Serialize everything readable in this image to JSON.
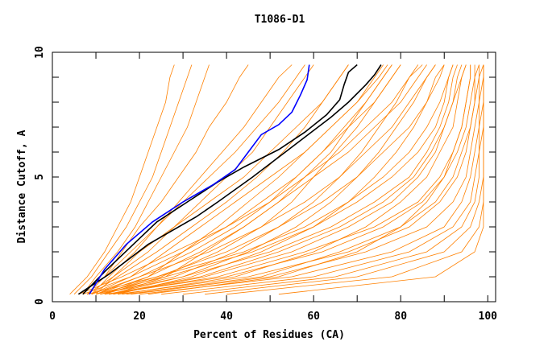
{
  "chart_data": {
    "type": "line",
    "title": "T1086-D1",
    "xlabel": "Percent of Residues (CA)",
    "ylabel": "Distance Cutoff, A",
    "xlim": [
      0,
      101.8
    ],
    "ylim": [
      0,
      10
    ],
    "x_ticks": [
      0,
      20,
      40,
      60,
      80,
      100
    ],
    "y_ticks": [
      0,
      5,
      10
    ],
    "grid": false,
    "colors": {
      "models": "#ff8000",
      "highlight": "#0000ff",
      "reference": "#000000"
    },
    "cutoffs": [
      0.3,
      1,
      2,
      3,
      4,
      5,
      6,
      7,
      8,
      9,
      9.5
    ],
    "orange_series_x": [
      [
        4,
        8,
        12,
        15,
        18,
        20,
        22,
        24,
        26,
        27,
        28
      ],
      [
        5,
        9,
        13,
        17,
        20,
        23,
        25,
        27,
        29,
        31,
        32
      ],
      [
        7,
        10,
        15,
        19,
        22,
        25,
        28,
        31,
        33,
        35,
        36
      ],
      [
        8,
        12,
        16,
        20,
        25,
        29,
        33,
        36,
        40,
        43,
        45
      ],
      [
        9,
        13,
        19,
        24,
        29,
        34,
        39,
        44,
        48,
        52,
        55
      ],
      [
        10,
        14,
        22,
        28,
        34,
        40,
        46,
        50,
        54,
        58,
        60
      ],
      [
        9,
        15,
        24,
        32,
        40,
        47,
        53,
        58,
        62,
        66,
        68
      ],
      [
        10,
        20,
        32,
        42,
        50,
        56,
        62,
        67,
        72,
        76,
        78
      ],
      [
        12,
        25,
        38,
        48,
        55,
        60,
        65,
        70,
        74,
        78,
        80
      ],
      [
        11,
        28,
        42,
        52,
        60,
        66,
        71,
        75,
        79,
        82,
        84
      ],
      [
        13,
        30,
        45,
        56,
        64,
        70,
        75,
        79,
        83,
        86,
        88
      ],
      [
        12,
        22,
        30,
        38,
        45,
        52,
        58,
        64,
        70,
        75,
        77
      ],
      [
        14,
        26,
        35,
        44,
        52,
        58,
        64,
        68,
        72,
        76,
        78
      ],
      [
        15,
        32,
        48,
        60,
        68,
        74,
        79,
        83,
        86,
        89,
        90
      ],
      [
        12,
        40,
        62,
        76,
        85,
        90,
        93,
        95,
        96,
        97,
        97
      ],
      [
        15,
        45,
        68,
        82,
        89,
        93,
        95,
        96,
        97,
        98,
        98
      ],
      [
        18,
        50,
        72,
        86,
        92,
        95,
        96,
        97,
        98,
        98,
        99
      ],
      [
        20,
        55,
        78,
        90,
        94,
        96,
        97,
        98,
        98,
        99,
        99
      ],
      [
        25,
        60,
        82,
        92,
        96,
        97,
        98,
        98,
        99,
        99,
        99
      ],
      [
        30,
        65,
        86,
        94,
        97,
        98,
        98,
        99,
        99,
        99,
        99
      ],
      [
        35,
        70,
        90,
        96,
        98,
        99,
        99,
        99,
        99,
        99,
        99
      ],
      [
        40,
        78,
        94,
        98,
        99,
        99,
        99,
        99,
        99,
        99,
        99
      ],
      [
        52,
        88,
        97,
        99,
        99,
        99,
        99,
        99,
        99,
        99,
        99
      ],
      [
        22,
        52,
        70,
        80,
        86,
        90,
        92,
        94,
        95,
        96,
        96
      ],
      [
        16,
        42,
        60,
        72,
        80,
        86,
        89,
        92,
        93,
        94,
        95
      ],
      [
        14,
        35,
        55,
        68,
        78,
        84,
        88,
        90,
        92,
        93,
        94
      ],
      [
        11,
        30,
        50,
        64,
        74,
        82,
        86,
        89,
        91,
        92,
        93
      ],
      [
        10,
        26,
        46,
        60,
        70,
        78,
        84,
        88,
        90,
        91,
        92
      ],
      [
        13,
        38,
        58,
        74,
        84,
        89,
        92,
        94,
        95,
        96,
        96
      ],
      [
        17,
        48,
        66,
        80,
        88,
        92,
        94,
        96,
        97,
        97,
        98
      ],
      [
        8,
        24,
        40,
        52,
        62,
        70,
        76,
        82,
        86,
        88,
        90
      ],
      [
        9,
        20,
        36,
        48,
        58,
        66,
        72,
        78,
        82,
        86,
        88
      ],
      [
        6,
        16,
        28,
        40,
        50,
        58,
        66,
        72,
        78,
        82,
        85
      ],
      [
        7,
        18,
        26,
        34,
        42,
        50,
        58,
        64,
        70,
        74,
        76
      ],
      [
        8,
        14,
        20,
        28,
        36,
        44,
        50,
        56,
        62,
        66,
        68
      ],
      [
        10,
        22,
        34,
        44,
        52,
        60,
        68,
        74,
        80,
        84,
        86
      ],
      [
        9,
        18,
        30,
        40,
        48,
        56,
        62,
        68,
        74,
        78,
        80
      ],
      [
        11,
        24,
        44,
        58,
        68,
        76,
        82,
        86,
        89,
        91,
        92
      ],
      [
        13,
        34,
        52,
        66,
        76,
        83,
        87,
        90,
        92,
        94,
        95
      ],
      [
        6,
        12,
        18,
        24,
        30,
        36,
        42,
        47,
        52,
        56,
        58
      ]
    ],
    "highlight_series": [
      [
        8.5,
        0.3
      ],
      [
        12,
        1.3
      ],
      [
        17,
        2.3
      ],
      [
        23,
        3.2
      ],
      [
        30,
        4.0
      ],
      [
        37,
        4.7
      ],
      [
        42,
        5.3
      ],
      [
        45,
        6.0
      ],
      [
        48,
        6.7
      ],
      [
        52,
        7.1
      ],
      [
        55,
        7.6
      ],
      [
        57,
        8.3
      ],
      [
        58.5,
        8.9
      ],
      [
        59,
        9.5
      ]
    ],
    "reference_series": [
      [
        [
          7,
          0.3
        ],
        [
          12,
          1.2
        ],
        [
          18,
          2.2
        ],
        [
          24,
          3.2
        ],
        [
          31,
          4.0
        ],
        [
          38,
          4.8
        ],
        [
          44,
          5.4
        ],
        [
          52,
          6.1
        ],
        [
          58,
          6.8
        ],
        [
          63,
          7.5
        ],
        [
          66,
          8.1
        ],
        [
          67,
          8.7
        ],
        [
          68,
          9.2
        ],
        [
          70,
          9.5
        ]
      ],
      [
        [
          6,
          0.3
        ],
        [
          13,
          1.1
        ],
        [
          22,
          2.3
        ],
        [
          33,
          3.4
        ],
        [
          38,
          4.0
        ],
        [
          46,
          5.0
        ],
        [
          52,
          5.8
        ],
        [
          58,
          6.6
        ],
        [
          64,
          7.4
        ],
        [
          68,
          8.0
        ],
        [
          72,
          8.7
        ],
        [
          74,
          9.1
        ],
        [
          75.5,
          9.5
        ]
      ]
    ]
  }
}
